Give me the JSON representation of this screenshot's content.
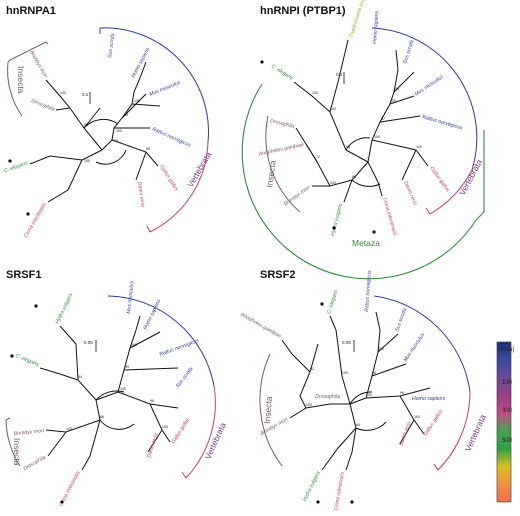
{
  "colors": {
    "vertebrata": "#2d3f9a",
    "purple": "#7a3e86",
    "pink": "#c0406e",
    "green": "#2f8a3a",
    "brown": "#7a5a62",
    "olive": "#a8a82c",
    "branch": "#111111"
  },
  "panels": [
    {
      "title": "hnRNPA1",
      "scale_label": "0.1",
      "clades": [
        {
          "name": "Vertebrata",
          "color": "#7a3e86"
        },
        {
          "name": "Insecta",
          "color": "#7a5a62"
        }
      ],
      "leaves": [
        {
          "name": "Sus scrofa",
          "color": "#2d3f9a"
        },
        {
          "name": "Homo sapiens",
          "color": "#2d3f9a"
        },
        {
          "name": "Mus musculus",
          "color": "#2d3f9a"
        },
        {
          "name": "Rattus norvegicus",
          "color": "#2d3f9a"
        },
        {
          "name": "Gallus gallus",
          "color": "#c0406e"
        },
        {
          "name": "Danio rerio",
          "color": "#c0406e"
        },
        {
          "name": "Ciona intestinalis",
          "color": "#c0406e"
        },
        {
          "name": "C. elegans",
          "color": "#2f8a3a"
        },
        {
          "name": "Drosophila",
          "color": "#7a5a62"
        },
        {
          "name": "Bombyx mori",
          "color": "#7a5a62"
        }
      ],
      "support": [
        "100",
        "95",
        "100",
        "78",
        "99",
        "100",
        "65",
        "100"
      ]
    },
    {
      "title": "hnRNPI (PTBP1)",
      "scale_label": "0.1",
      "clades": [
        {
          "name": "Vertebrata",
          "color": "#7a3e86"
        },
        {
          "name": "Insecta",
          "color": "#7a5a62"
        },
        {
          "name": "Metaza",
          "color": "#2f8a3a"
        }
      ],
      "leaves": [
        {
          "name": "Trypanosoma brucei",
          "color": "#a8a82c"
        },
        {
          "name": "Homo sapiens",
          "color": "#2d3f9a"
        },
        {
          "name": "Sus scrofa",
          "color": "#2d3f9a"
        },
        {
          "name": "Mus musculus",
          "color": "#2d3f9a"
        },
        {
          "name": "Rattus norvegicus",
          "color": "#2d3f9a"
        },
        {
          "name": "Gallus gallus",
          "color": "#c0406e"
        },
        {
          "name": "Danio rerio",
          "color": "#c0406e"
        },
        {
          "name": "Ciona intestinalis",
          "color": "#c0406e"
        },
        {
          "name": "Hydra vulgaris",
          "color": "#2f8a3a"
        },
        {
          "name": "Bombyx mori",
          "color": "#7a5a62"
        },
        {
          "name": "Anopheles gambiae",
          "color": "#7a5a62"
        },
        {
          "name": "Drosophila",
          "color": "#7a5a62"
        },
        {
          "name": "C. elegans",
          "color": "#2f8a3a"
        }
      ],
      "support": [
        "100",
        "97",
        "100",
        "99",
        "100",
        "98",
        "100",
        "88",
        "100",
        "72",
        "100"
      ]
    },
    {
      "title": "SRSF1",
      "scale_label": "0.05",
      "clades": [
        {
          "name": "Vertebrata",
          "color": "#7a3e86"
        },
        {
          "name": "Insecta",
          "color": "#7a5a62"
        }
      ],
      "leaves": [
        {
          "name": "Hydra vulgaris",
          "color": "#2f8a3a"
        },
        {
          "name": "Mus musculus",
          "color": "#2d3f9a"
        },
        {
          "name": "Homo sapiens",
          "color": "#2d3f9a"
        },
        {
          "name": "Rattus norvegicus",
          "color": "#2d3f9a"
        },
        {
          "name": "Sus scrofa",
          "color": "#2d3f9a"
        },
        {
          "name": "Gallus gallus",
          "color": "#c0406e"
        },
        {
          "name": "Danio rerio",
          "color": "#c0406e"
        },
        {
          "name": "Ciona intestinalis",
          "color": "#c0406e"
        },
        {
          "name": "Drosophila",
          "color": "#7a5a62"
        },
        {
          "name": "Bombyx mori",
          "color": "#7a5a62"
        },
        {
          "name": "C. elegans",
          "color": "#2f8a3a"
        }
      ],
      "support": [
        "100",
        "99",
        "100",
        "98",
        "100",
        "86",
        "100",
        "94"
      ]
    },
    {
      "title": "SRSF2",
      "scale_label": "0.05",
      "clades": [
        {
          "name": "Vertebrata",
          "color": "#7a3e86"
        },
        {
          "name": "Insecta",
          "color": "#7a5a62"
        }
      ],
      "leaves": [
        {
          "name": "C. elegans",
          "color": "#2f8a3a"
        },
        {
          "name": "Rattus norvegicus",
          "color": "#2d3f9a"
        },
        {
          "name": "Sus scrofa",
          "color": "#2d3f9a"
        },
        {
          "name": "Mus musculus",
          "color": "#2d3f9a"
        },
        {
          "name": "Homo sapiens",
          "color": "#2d3f9a"
        },
        {
          "name": "Gallus gallus",
          "color": "#c0406e"
        },
        {
          "name": "Danio rerio",
          "color": "#c0406e"
        },
        {
          "name": "Ciona intestinalis",
          "color": "#c0406e"
        },
        {
          "name": "Hydra vulgaris",
          "color": "#2f8a3a"
        },
        {
          "name": "Bombyx mori",
          "color": "#7a5a62"
        },
        {
          "name": "Drosophila",
          "color": "#7a5a62"
        },
        {
          "name": "Anopheles gambiae",
          "color": "#7a5a62"
        }
      ],
      "support": [
        "100",
        "98",
        "100",
        "96",
        "100",
        "84",
        "100",
        "92",
        "100"
      ]
    }
  ],
  "colorbar": {
    "unit": "(Mya)",
    "ticks": [
      "100",
      "300",
      "500"
    ],
    "stops": [
      "#23307a",
      "#3a4aa0",
      "#6a4a9a",
      "#9a3f86",
      "#c04e86",
      "#4aa050",
      "#2fa048",
      "#d8c020",
      "#f09040",
      "#f07050"
    ]
  }
}
